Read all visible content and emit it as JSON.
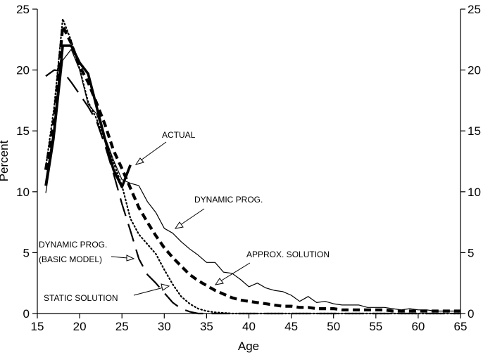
{
  "chart_data": {
    "type": "line",
    "title": "",
    "xlabel": "Age",
    "ylabel": "Percent",
    "xlim": [
      15,
      65
    ],
    "ylim": [
      0,
      25
    ],
    "x_ticks": [
      15,
      20,
      25,
      30,
      35,
      40,
      45,
      50,
      55,
      60,
      65
    ],
    "y_ticks": [
      0,
      5,
      10,
      15,
      20,
      25
    ],
    "right_axis_ticks": [
      0,
      5,
      10,
      15,
      20,
      25
    ],
    "grid": false,
    "series": [
      {
        "name": "ACTUAL",
        "style": "thick-solid",
        "x": [
          16,
          17,
          18,
          19,
          20,
          21,
          22,
          23,
          24,
          25,
          26
        ],
        "y": [
          10.5,
          15,
          22,
          22,
          20.6,
          19.7,
          17,
          14.3,
          11.8,
          10.4,
          12.2
        ]
      },
      {
        "name": "DYNAMIC PROG.",
        "style": "thin-solid",
        "x": [
          16,
          17,
          18,
          19,
          20,
          21,
          22,
          23,
          24,
          25,
          26,
          27,
          28,
          29,
          30,
          31,
          32,
          33,
          34,
          35,
          36,
          37,
          38,
          39,
          40,
          41,
          42,
          43,
          44,
          45,
          46,
          47,
          48,
          49,
          50,
          51,
          52,
          53,
          54,
          55,
          56,
          57,
          58,
          59,
          60,
          61,
          62,
          63,
          64,
          65
        ],
        "y": [
          9.9,
          14.3,
          20.8,
          21.7,
          20,
          17.2,
          16.4,
          14.5,
          12.6,
          11,
          10.7,
          10.5,
          9.2,
          8.3,
          7,
          6.6,
          5.9,
          5.3,
          4.8,
          4.2,
          4.2,
          3.4,
          3.3,
          2.8,
          2.2,
          2.5,
          2.1,
          1.9,
          1.8,
          1.5,
          1,
          1.4,
          0.9,
          1,
          0.8,
          0.7,
          0.7,
          0.7,
          0.5,
          0.5,
          0.5,
          0.4,
          0.3,
          0.4,
          0.3,
          0.3,
          0.2,
          0.2,
          0.2,
          0.2
        ]
      },
      {
        "name": "APPROX. SOLUTION",
        "style": "thick-dashed",
        "x": [
          16,
          17,
          18,
          19,
          20,
          21,
          22,
          23,
          24,
          25,
          26,
          27,
          28,
          29,
          30,
          31,
          32,
          33,
          34,
          35,
          36,
          37,
          38,
          39,
          40,
          41,
          42,
          43,
          44,
          45,
          46,
          47,
          48,
          49,
          50,
          51,
          52,
          53,
          54,
          55,
          56,
          57,
          58,
          59,
          60,
          61,
          62,
          63,
          64,
          65
        ],
        "y": [
          11.8,
          16,
          23.6,
          22.2,
          20.3,
          19,
          17.3,
          15.5,
          13.4,
          11.9,
          10.3,
          8.7,
          7.5,
          6.4,
          5.4,
          4.6,
          3.9,
          3.2,
          2.7,
          2.3,
          1.9,
          1.6,
          1.3,
          1.1,
          1,
          0.9,
          0.8,
          0.7,
          0.6,
          0.6,
          0.5,
          0.5,
          0.4,
          0.4,
          0.4,
          0.3,
          0.3,
          0.3,
          0.3,
          0.3,
          0.3,
          0.2,
          0.2,
          0.2,
          0.2,
          0.2,
          0.2,
          0.2,
          0.2,
          0.2
        ]
      },
      {
        "name": "STATIC SOLUTION",
        "style": "dotted",
        "x": [
          16,
          17,
          18,
          19,
          20,
          21,
          22,
          23,
          24,
          25,
          26,
          27,
          28,
          29,
          30,
          31,
          32,
          33,
          34,
          35,
          36,
          37,
          38,
          39,
          40,
          45,
          50,
          55,
          60,
          65
        ],
        "y": [
          12,
          17,
          24.2,
          22.4,
          20.1,
          17.4,
          16,
          14.2,
          12.4,
          10.5,
          7.8,
          6.5,
          5.7,
          4.9,
          3.6,
          2.4,
          1.4,
          0.8,
          0.4,
          0.2,
          0.1,
          0.05,
          0,
          0,
          0,
          0,
          0,
          0,
          0,
          0
        ]
      },
      {
        "name": "DYNAMIC PROG. (BASIC MODEL)",
        "style": "long-dashed",
        "x": [
          16,
          17,
          18,
          19,
          20,
          21,
          22,
          23,
          24,
          25,
          26,
          27,
          28,
          29,
          30,
          31,
          32,
          33,
          34,
          35,
          36,
          37,
          38,
          39,
          40,
          45,
          50,
          55,
          60,
          65
        ],
        "y": [
          19.5,
          20,
          19.9,
          19,
          18,
          17,
          15.8,
          13.8,
          11.5,
          9,
          6.8,
          4.5,
          3.2,
          2.5,
          1.7,
          0.9,
          0.4,
          0.15,
          0,
          0,
          0,
          0,
          0,
          0,
          0,
          0,
          0,
          0,
          0,
          0
        ]
      }
    ],
    "annotations": [
      {
        "text": "ACTUAL",
        "target_series": "ACTUAL"
      },
      {
        "text": "DYNAMIC PROG.",
        "target_series": "DYNAMIC PROG."
      },
      {
        "text": "APPROX. SOLUTION",
        "target_series": "APPROX. SOLUTION"
      },
      {
        "text": "STATIC SOLUTION",
        "target_series": "STATIC SOLUTION"
      },
      {
        "lines": [
          "DYNAMIC PROG.",
          "(BASIC MODEL)"
        ],
        "target_series": "DYNAMIC PROG. (BASIC MODEL)"
      }
    ]
  }
}
